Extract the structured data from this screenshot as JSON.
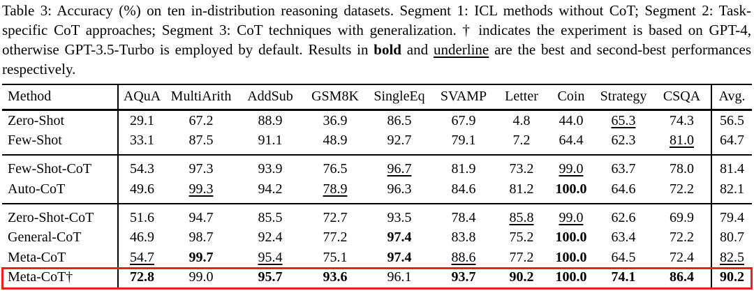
{
  "caption": {
    "part1": "Table 3: Accuracy (%) on ten in-distribution reasoning datasets. Segment 1: ICL methods without CoT; Segment 2: Task-specific CoT approaches; Segment 3: CoT techniques with generalization. † indicates the experiment is based on GPT-4, otherwise GPT-3.5-Turbo is employed by default. Results in ",
    "bold_word": "bold",
    "part2": " and ",
    "underline_word": "underline",
    "part3": " are the best and second-best performances respectively."
  },
  "table": {
    "columns": [
      "Method",
      "AQuA",
      "MultiArith",
      "AddSub",
      "GSM8K",
      "SingleEq",
      "SVAMP",
      "Letter",
      "Coin",
      "Strategy",
      "CSQA",
      "Avg."
    ],
    "highlight_color": "#e8201e",
    "segments": [
      {
        "label": "Segment 1: ICL methods without CoT",
        "rows": [
          {
            "method": "Zero-Shot",
            "cells": [
              "29.1",
              "67.2",
              "88.9",
              "36.9",
              "86.5",
              "67.9",
              "4.8",
              "44.0",
              "65.3",
              "74.3",
              "56.5"
            ],
            "fmt": [
              "",
              "",
              "",
              "",
              "",
              "",
              "",
              "",
              "u",
              "",
              ""
            ]
          },
          {
            "method": "Few-Shot",
            "cells": [
              "33.1",
              "87.5",
              "91.1",
              "48.9",
              "92.7",
              "79.1",
              "7.2",
              "64.4",
              "62.3",
              "81.0",
              "64.7"
            ],
            "fmt": [
              "",
              "",
              "",
              "",
              "",
              "",
              "",
              "",
              "",
              "u",
              ""
            ]
          }
        ]
      },
      {
        "label": "Segment 2: Task-specific CoT approaches",
        "rows": [
          {
            "method": "Few-Shot-CoT",
            "cells": [
              "54.3",
              "97.3",
              "93.9",
              "76.5",
              "96.7",
              "81.9",
              "73.2",
              "99.0",
              "63.7",
              "78.0",
              "81.4"
            ],
            "fmt": [
              "",
              "",
              "",
              "",
              "u",
              "",
              "",
              "u",
              "",
              "",
              ""
            ]
          },
          {
            "method": "Auto-CoT",
            "cells": [
              "49.6",
              "99.3",
              "94.2",
              "78.9",
              "96.3",
              "84.6",
              "81.2",
              "100.0",
              "64.6",
              "72.2",
              "82.1"
            ],
            "fmt": [
              "",
              "u",
              "",
              "u",
              "",
              "",
              "",
              "b",
              "",
              "",
              ""
            ]
          }
        ]
      },
      {
        "label": "Segment 3: CoT techniques with generalization",
        "rows": [
          {
            "method": "Zero-Shot-CoT",
            "cells": [
              "51.6",
              "94.7",
              "85.5",
              "72.7",
              "93.5",
              "78.4",
              "85.8",
              "99.0",
              "62.6",
              "69.9",
              "79.4"
            ],
            "fmt": [
              "",
              "",
              "",
              "",
              "",
              "",
              "u",
              "u",
              "",
              "",
              ""
            ]
          },
          {
            "method": "General-CoT",
            "cells": [
              "46.9",
              "98.7",
              "92.4",
              "77.2",
              "97.4",
              "83.8",
              "75.2",
              "100.0",
              "63.4",
              "72.2",
              "80.7"
            ],
            "fmt": [
              "",
              "",
              "",
              "",
              "b",
              "",
              "",
              "b",
              "",
              "",
              ""
            ]
          },
          {
            "method": "Meta-CoT",
            "cells": [
              "54.7",
              "99.7",
              "95.4",
              "75.1",
              "97.4",
              "88.6",
              "77.2",
              "100.0",
              "64.5",
              "72.4",
              "82.5"
            ],
            "fmt": [
              "u",
              "b",
              "u",
              "",
              "b",
              "u",
              "",
              "b",
              "",
              "",
              "u"
            ]
          },
          {
            "method": "Meta-CoT†",
            "cells": [
              "72.8",
              "99.0",
              "95.7",
              "93.6",
              "96.1",
              "93.7",
              "90.2",
              "100.0",
              "74.1",
              "86.4",
              "90.2"
            ],
            "fmt": [
              "b",
              "",
              "b",
              "b",
              "",
              "b",
              "b",
              "b",
              "b",
              "b",
              "b"
            ],
            "highlight": true
          }
        ]
      }
    ]
  }
}
